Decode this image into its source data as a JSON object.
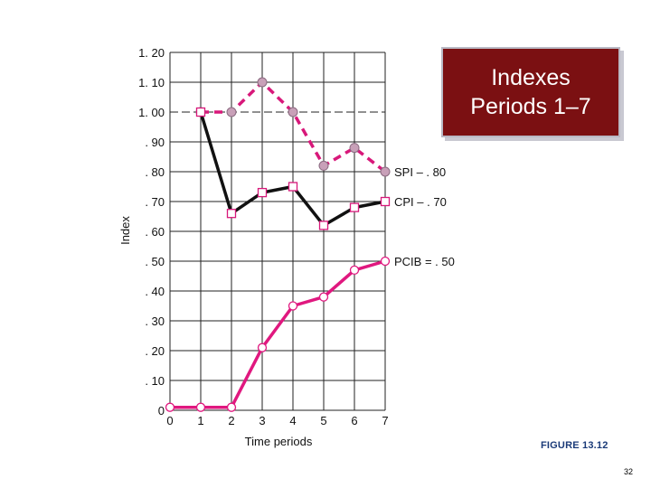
{
  "slide": {
    "title_lines": [
      "Indexes",
      "Periods 1–7"
    ],
    "figure_caption": "FIGURE 13.12",
    "page_number": "32"
  },
  "chart_data": {
    "type": "line",
    "xlabel": "Time periods",
    "ylabel": "Index",
    "xlim": [
      0,
      7
    ],
    "ylim": [
      0,
      1.2
    ],
    "x_ticks": [
      "0",
      "1",
      "2",
      "3",
      "4",
      "5",
      "6",
      "7"
    ],
    "y_ticks": [
      {
        "value": 0,
        "label": "0"
      },
      {
        "value": 0.1,
        "label": ". 10"
      },
      {
        "value": 0.2,
        "label": ". 20"
      },
      {
        "value": 0.3,
        "label": ". 30"
      },
      {
        "value": 0.4,
        "label": ". 40"
      },
      {
        "value": 0.5,
        "label": ". 50"
      },
      {
        "value": 0.6,
        "label": ". 60"
      },
      {
        "value": 0.7,
        "label": ". 70"
      },
      {
        "value": 0.8,
        "label": ". 80"
      },
      {
        "value": 0.9,
        "label": ". 90"
      },
      {
        "value": 1.0,
        "label": "1. 00"
      },
      {
        "value": 1.1,
        "label": "1. 10"
      },
      {
        "value": 1.2,
        "label": "1. 20"
      }
    ],
    "grid": true,
    "reference_line": {
      "y": 1.0,
      "style": "dashed"
    },
    "series": [
      {
        "name": "SPI – . 80",
        "color": "#d8187a",
        "marker_color": "#c8a0b8",
        "line_style": "dashed",
        "marker": "circle-filled",
        "x": [
          1,
          2,
          3,
          4,
          5,
          6,
          7
        ],
        "y": [
          1.0,
          1.0,
          1.1,
          1.0,
          0.82,
          0.88,
          0.8
        ]
      },
      {
        "name": "CPI – . 70",
        "color": "#111111",
        "marker_color": "#d8187a",
        "line_style": "solid",
        "marker": "square-open",
        "x": [
          1,
          2,
          3,
          4,
          5,
          6,
          7
        ],
        "y": [
          1.0,
          0.66,
          0.73,
          0.75,
          0.62,
          0.68,
          0.7
        ]
      },
      {
        "name": "PCIB = . 50",
        "color": "#e0187f",
        "marker_color": "#e0187f",
        "line_style": "solid",
        "marker": "circle-open",
        "x": [
          0,
          1,
          2,
          3,
          4,
          5,
          6,
          7
        ],
        "y": [
          0.01,
          0.01,
          0.01,
          0.21,
          0.35,
          0.38,
          0.47,
          0.5
        ]
      }
    ]
  }
}
